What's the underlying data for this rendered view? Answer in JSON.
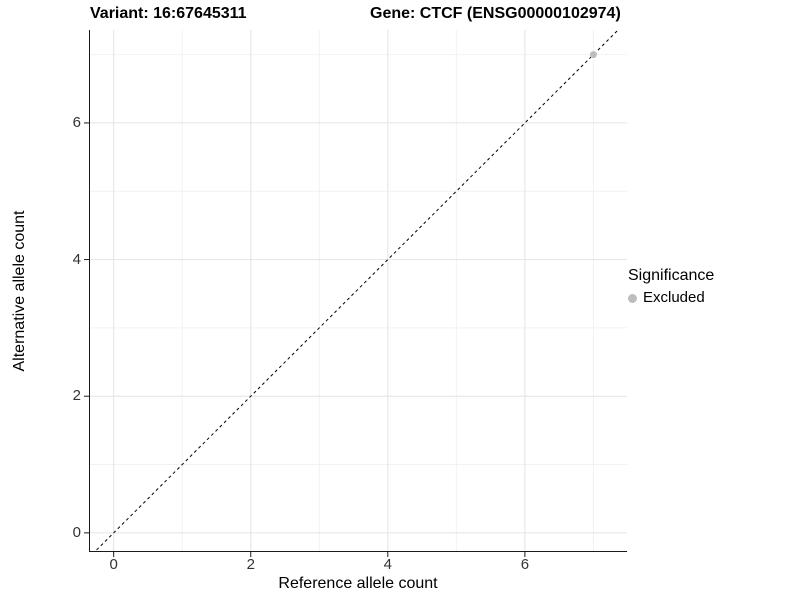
{
  "titles": {
    "variant": "Variant: 16:67645311",
    "gene": "Gene: CTCF (ENSG00000102974)"
  },
  "axes": {
    "x": {
      "label": "Reference allele count",
      "tick_labels": [
        "0",
        "2",
        "4",
        "6"
      ]
    },
    "y": {
      "label": "Alternative allele count",
      "tick_labels": [
        "0",
        "2",
        "4",
        "6"
      ]
    }
  },
  "legend": {
    "title": "Significance",
    "items": [
      {
        "label": "Excluded",
        "color": "#bdbdbd"
      }
    ]
  },
  "colors": {
    "background": "#ffffff",
    "axis_line": "#1a1a1a",
    "tick_label": "#333333",
    "grid_major": "#e4e4e4",
    "grid_minor": "#f2f2f2",
    "identity_line": "#000000",
    "point": "#bdbdbd"
  },
  "chart_data": {
    "type": "scatter",
    "title_left": "Variant: 16:67645311",
    "title_right": "Gene: CTCF (ENSG00000102974)",
    "xlabel": "Reference allele count",
    "ylabel": "Alternative allele count",
    "xlim": [
      -0.36,
      7.49
    ],
    "ylim": [
      -0.28,
      7.36
    ],
    "x_major_ticks": [
      0,
      2,
      4,
      6
    ],
    "y_major_ticks": [
      0,
      2,
      4,
      6
    ],
    "x_minor_gridlines": [
      1,
      3,
      5,
      7
    ],
    "y_minor_gridlines": [
      1,
      3,
      5,
      7
    ],
    "grid": "major+minor",
    "identity_line": {
      "equation": "y = x",
      "style": "dashed",
      "color": "#000000"
    },
    "series": [
      {
        "name": "Excluded",
        "color": "#bdbdbd",
        "points": [
          [
            7,
            7
          ]
        ]
      }
    ],
    "legend_position": "right"
  }
}
